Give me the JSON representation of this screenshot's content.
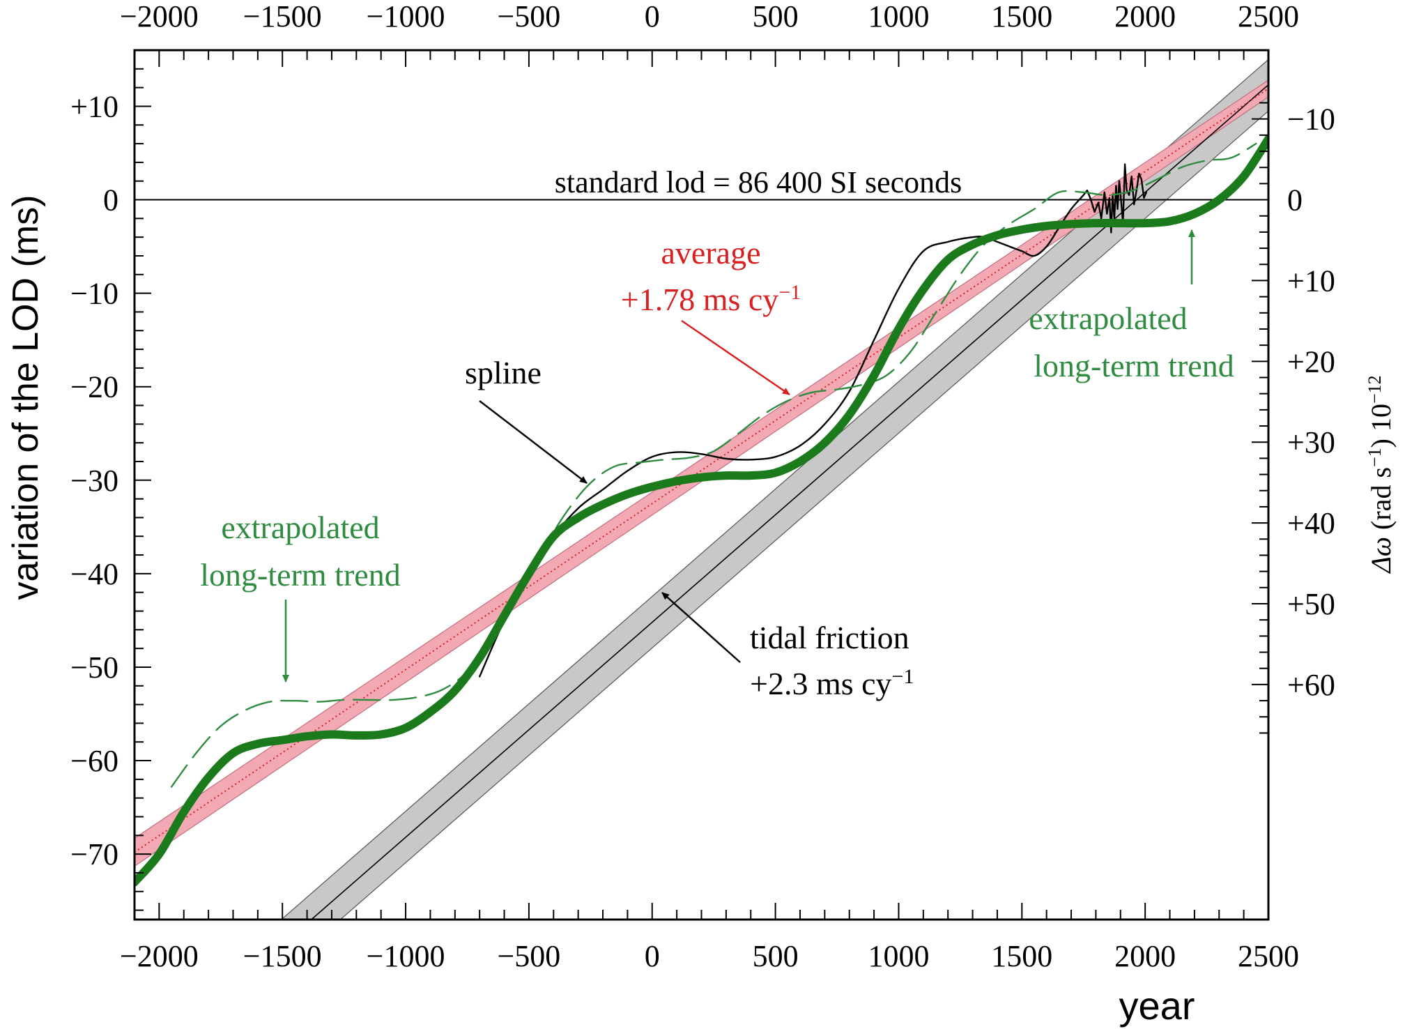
{
  "chart_data": {
    "type": "line",
    "xlabel": "year",
    "ylabel": "variation of the LOD (ms)",
    "y2label_parts": [
      "Δω",
      " (rad s",
      "−1",
      ") 10",
      "−12"
    ],
    "xlim": [
      -2100,
      2500
    ],
    "ylim": [
      -77,
      16
    ],
    "x_ticks": [
      -2000,
      -1500,
      -1000,
      -500,
      0,
      500,
      1000,
      1500,
      2000,
      2500
    ],
    "x_tick_labels": [
      "−2000",
      "−1500",
      "−1000",
      "−500",
      "0",
      "500",
      "1000",
      "1500",
      "2000",
      "2500"
    ],
    "y_ticks": [
      10,
      0,
      -10,
      -20,
      -30,
      -40,
      -50,
      -60,
      -70
    ],
    "y_tick_labels": [
      "+10",
      "0",
      "−10",
      "−20",
      "−30",
      "−40",
      "−50",
      "−60",
      "−70"
    ],
    "y2_ticks": [
      -10,
      0,
      10,
      20,
      30,
      40,
      50,
      60
    ],
    "y2_tick_labels": [
      "−10",
      "0",
      "+10",
      "+20",
      "+30",
      "+40",
      "+50",
      "+60"
    ],
    "y2_per_y": -1.157,
    "grid": false,
    "reference_line": {
      "y": 0,
      "label": "standard lod = 86 400 SI seconds"
    },
    "series": [
      {
        "name": "tidal friction",
        "slope_label": "+2.3 ms cy",
        "slope_sup": "−1",
        "type": "line_band",
        "color": "#000000",
        "band_color": "#c8c8c8",
        "x": [
          -1700,
          2500
        ],
        "y": [
          -84.3,
          12.3
        ],
        "band_upper": [
          -81.5,
          15.0
        ],
        "band_lower": [
          -87.0,
          9.5
        ]
      },
      {
        "name": "average",
        "slope_label": "+1.78 ms cy",
        "slope_sup": "−1",
        "type": "line_band",
        "color": "#d82020",
        "band_color": "#f2a9b4",
        "x": [
          -2100,
          2500
        ],
        "y": [
          -69.8,
          11.9
        ],
        "band_upper": [
          -68.3,
          12.8
        ],
        "band_lower": [
          -71.3,
          11.0
        ]
      },
      {
        "name": "spline",
        "color": "#000000",
        "type": "line",
        "x": [
          -700,
          -600,
          -500,
          -400,
          -300,
          -200,
          -100,
          0,
          100,
          200,
          300,
          400,
          500,
          600,
          700,
          800,
          900,
          1000,
          1100,
          1200,
          1300,
          1350,
          1400,
          1450,
          1500,
          1550,
          1600,
          1650,
          1700,
          1750
        ],
        "y": [
          -51.0,
          -45.0,
          -40.0,
          -36.0,
          -33.0,
          -31.0,
          -29.0,
          -27.5,
          -27.0,
          -27.2,
          -27.7,
          -27.8,
          -27.5,
          -26.3,
          -24.0,
          -20.5,
          -15.0,
          -9.5,
          -5.5,
          -4.5,
          -4.0,
          -4.0,
          -4.5,
          -5.0,
          -5.5,
          -6.0,
          -5.0,
          -3.0,
          -1.0,
          0.5
        ]
      },
      {
        "name": "spline-recent",
        "color": "#000000",
        "type": "line",
        "x": [
          1750,
          1765,
          1780,
          1795,
          1810,
          1822,
          1835,
          1845,
          1855,
          1862,
          1868,
          1875,
          1882,
          1888,
          1895,
          1902,
          1910,
          1918,
          1925,
          1935,
          1945,
          1955,
          1965,
          1975,
          1985,
          1995,
          2005
        ],
        "y": [
          0.5,
          1.0,
          0.0,
          -1.3,
          -0.3,
          -2.0,
          0.8,
          -1.5,
          0.2,
          -3.5,
          0.5,
          -2.0,
          1.5,
          -1.0,
          2.0,
          0.0,
          -2.5,
          3.8,
          1.0,
          0.5,
          2.5,
          -0.5,
          1.0,
          2.8,
          2.2,
          0.2,
          0.8
        ]
      },
      {
        "name": "extrapolated long-term trend",
        "color": "#2e8b40",
        "type": "dashed",
        "x": [
          -1950,
          -1850,
          -1750,
          -1650,
          -1550,
          -1450,
          -1350,
          -1250,
          -1150,
          -1050,
          -950,
          -850,
          -750,
          -650,
          -550,
          -450,
          -350,
          -250,
          -150,
          -50,
          50,
          150,
          250,
          350,
          450,
          550,
          650,
          750,
          850,
          950,
          1050,
          1150,
          1250,
          1350,
          1450,
          1550,
          1650,
          1750,
          1850,
          1950,
          2050,
          2150,
          2250,
          2350,
          2450
        ],
        "y": [
          -62.8,
          -59.2,
          -56.3,
          -54.6,
          -53.7,
          -53.6,
          -53.7,
          -53.5,
          -53.5,
          -53.5,
          -53.2,
          -52.4,
          -50.5,
          -47.0,
          -42.5,
          -37.8,
          -33.5,
          -30.3,
          -28.5,
          -28.1,
          -27.8,
          -27.6,
          -26.9,
          -25.0,
          -23.0,
          -21.5,
          -20.6,
          -20.3,
          -19.8,
          -18.8,
          -16.2,
          -12.1,
          -8.0,
          -4.7,
          -2.6,
          -1.0,
          0.8,
          0.8,
          0.5,
          1.0,
          2.2,
          3.5,
          4.2,
          4.5,
          6.0
        ]
      },
      {
        "name": "extrapolated long-term trend (model)",
        "color": "#1b7a1b",
        "type": "thick",
        "x": [
          -2100,
          -2000,
          -1900,
          -1800,
          -1700,
          -1600,
          -1500,
          -1400,
          -1300,
          -1200,
          -1100,
          -1000,
          -900,
          -800,
          -700,
          -600,
          -500,
          -400,
          -300,
          -200,
          -100,
          0,
          100,
          200,
          300,
          400,
          500,
          600,
          700,
          800,
          900,
          1000,
          1100,
          1200,
          1300,
          1400,
          1500,
          1600,
          1700,
          1800,
          1900,
          2000,
          2100,
          2200,
          2300,
          2400,
          2500
        ],
        "y": [
          -73.0,
          -70.0,
          -65.5,
          -61.8,
          -59.2,
          -58.2,
          -57.8,
          -57.4,
          -57.2,
          -57.3,
          -57.2,
          -56.5,
          -54.8,
          -52.5,
          -49.0,
          -44.5,
          -40.0,
          -36.0,
          -34.0,
          -32.6,
          -31.5,
          -30.7,
          -30.1,
          -29.7,
          -29.5,
          -29.5,
          -29.2,
          -28.0,
          -26.0,
          -23.0,
          -18.8,
          -13.8,
          -9.6,
          -6.4,
          -4.8,
          -3.8,
          -3.2,
          -2.8,
          -2.6,
          -2.5,
          -2.5,
          -2.5,
          -2.3,
          -1.5,
          -0.0,
          2.5,
          6.5
        ]
      }
    ],
    "annotations": [
      {
        "id": "average",
        "lines": [
          "average",
          "+1.78 ms cy"
        ],
        "sup": "−1",
        "color": "#d82020"
      },
      {
        "id": "spline",
        "lines": [
          "spline"
        ],
        "color": "#000000"
      },
      {
        "id": "tidal",
        "lines": [
          "tidal friction",
          "+2.3 ms cy"
        ],
        "sup": "−1",
        "color": "#000000"
      },
      {
        "id": "trend-right",
        "lines": [
          "extrapolated",
          "long-term trend"
        ],
        "color": "#2e8b40"
      },
      {
        "id": "trend-left",
        "lines": [
          "extrapolated",
          "long-term trend"
        ],
        "color": "#2e8b40"
      }
    ]
  }
}
